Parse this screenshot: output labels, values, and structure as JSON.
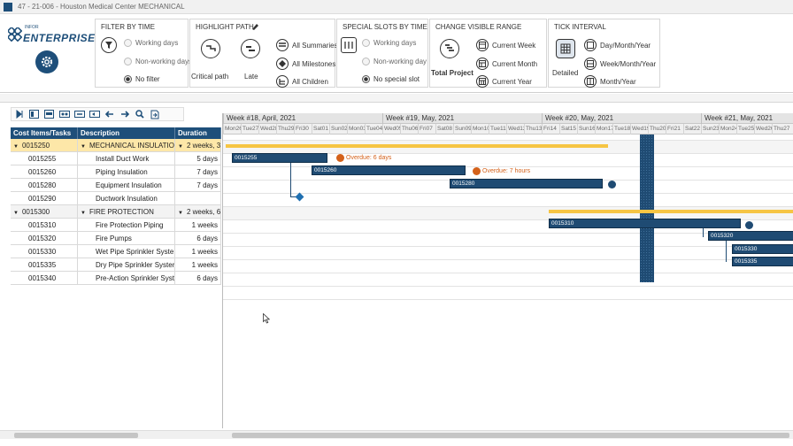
{
  "window": {
    "title": "47 - 21-006 - Houston Medical Center MECHANICAL"
  },
  "logo": {
    "small": "INFOR",
    "text": "ENTERPRISE"
  },
  "ribbon": {
    "filter_by_time": {
      "title": "FILTER BY TIME",
      "options": [
        "Working days",
        "Non-working days",
        "No filter"
      ],
      "selected": "No filter"
    },
    "highlight_path": {
      "title": "HIGHLIGHT PATH",
      "critical": "Critical path",
      "late": "Late",
      "items": [
        "All Summaries",
        "All Milestones",
        "All Children"
      ]
    },
    "special_slots": {
      "title": "SPECIAL SLOTS BY TIME",
      "options": [
        "Working days",
        "Non-working day",
        "No special slot"
      ],
      "selected": "No special slot"
    },
    "visible_range": {
      "title": "CHANGE VISIBLE RANGE",
      "total": "Total Project",
      "items": [
        "Current Week",
        "Current Month",
        "Current Year"
      ]
    },
    "tick_interval": {
      "title": "TICK INTERVAL",
      "detailed": "Detailed",
      "items": [
        "Day/Month/Year",
        "Week/Month/Year",
        "Month/Year"
      ]
    }
  },
  "grid": {
    "columns": [
      "Cost Items/Tasks",
      "Description",
      "Duration"
    ],
    "rows": [
      {
        "id": "0015250",
        "desc": "MECHANICAL INSULATION",
        "dur": "2 weeks, 3",
        "summary": true,
        "selected": true
      },
      {
        "id": "0015255",
        "desc": "Install Duct Work",
        "dur": "5 days"
      },
      {
        "id": "0015260",
        "desc": "Piping Insulation",
        "dur": "7 days"
      },
      {
        "id": "0015280",
        "desc": "Equipment Insulation",
        "dur": "7 days"
      },
      {
        "id": "0015290",
        "desc": "Ductwork Insulation",
        "dur": ""
      },
      {
        "id": "0015300",
        "desc": "FIRE PROTECTION",
        "dur": "2 weeks, 6",
        "summary": true
      },
      {
        "id": "0015310",
        "desc": "Fire Protection Piping",
        "dur": "1 weeks"
      },
      {
        "id": "0015320",
        "desc": "Fire Pumps",
        "dur": "6 days"
      },
      {
        "id": "0015330",
        "desc": "Wet Pipe Sprinkler Syste",
        "dur": "1 weeks"
      },
      {
        "id": "0015335",
        "desc": "Dry Pipe Sprinkler Syster",
        "dur": "1 weeks"
      },
      {
        "id": "0015340",
        "desc": "Pre-Action Sprinkler Syst",
        "dur": "6 days"
      }
    ]
  },
  "gantt": {
    "weeks": [
      "Week #18, April, 2021",
      "Week #19, May, 2021",
      "Week #20, May, 2021",
      "Week #21, May, 2021"
    ],
    "days": [
      "Mon26",
      "Tue27",
      "Wed28",
      "Thu29",
      "Fri30",
      "Sat01",
      "Sun02",
      "Mon03",
      "Tue04",
      "Wed05",
      "Thu06",
      "Fri07",
      "Sat08",
      "Sun09",
      "Mon10",
      "Tue11",
      "Wed12",
      "Thu13",
      "Fri14",
      "Sat15",
      "Sun16",
      "Mon17",
      "Tue18",
      "Wed19",
      "Thu20",
      "Fri21",
      "Sat22",
      "Sun23",
      "Mon24",
      "Tue25",
      "Wed26",
      "Thu27"
    ],
    "bars": [
      {
        "label": "0015255"
      },
      {
        "label": "0015260"
      },
      {
        "label": "0015280"
      },
      {
        "label": "0015310"
      },
      {
        "label": "0015320"
      },
      {
        "label": "0015330"
      },
      {
        "label": "0015335"
      }
    ],
    "overdue": [
      "Overdue: 6 days",
      "Overdue: 7 hours"
    ]
  },
  "colors": {
    "accent": "#1e4f7a",
    "summary_bar": "#f6c544",
    "selected_row": "#fde7a8",
    "overdue": "#d4611a"
  }
}
